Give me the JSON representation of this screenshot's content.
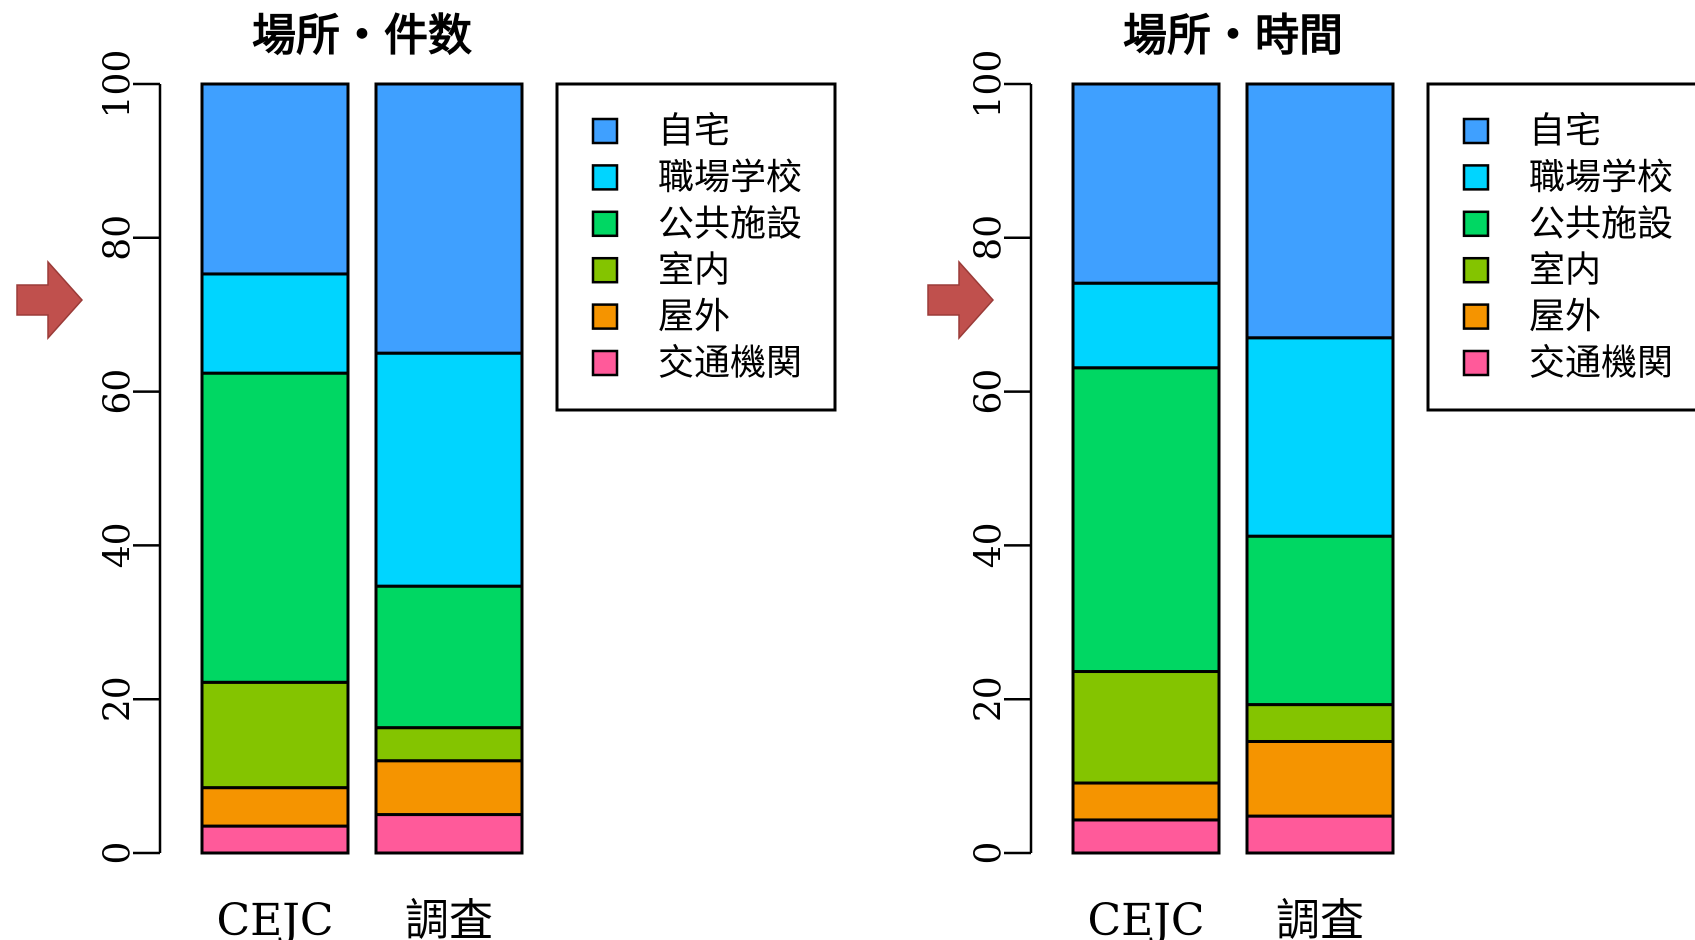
{
  "colors": {
    "自宅": "#3fa0ff",
    "職場学校": "#00d5ff",
    "公共施設": "#00d763",
    "室内": "#84c400",
    "屋外": "#f59400",
    "交通機関": "#ff5a9a",
    "arrow": "#c0504d",
    "frame": "#000000"
  },
  "chart_data": [
    {
      "type": "bar",
      "stacked": true,
      "title": "場所・件数",
      "categories": [
        "CEJC",
        "調査"
      ],
      "ylim": [
        0,
        100
      ],
      "yticks": [
        0,
        20,
        40,
        60,
        80,
        100
      ],
      "legend_placement": "top-right",
      "series": [
        {
          "name": "交通機関",
          "values": [
            3.5,
            5.0
          ]
        },
        {
          "name": "屋外",
          "values": [
            5.0,
            7.0
          ]
        },
        {
          "name": "室内",
          "values": [
            13.7,
            4.3
          ]
        },
        {
          "name": "公共施設",
          "values": [
            40.2,
            18.4
          ]
        },
        {
          "name": "職場学校",
          "values": [
            12.9,
            30.3
          ]
        },
        {
          "name": "自宅",
          "values": [
            24.7,
            35.0
          ]
        }
      ],
      "legend_order": [
        "自宅",
        "職場学校",
        "公共施設",
        "室内",
        "屋外",
        "交通機関"
      ]
    },
    {
      "type": "bar",
      "stacked": true,
      "title": "場所・時間",
      "categories": [
        "CEJC",
        "調査"
      ],
      "ylim": [
        0,
        100
      ],
      "yticks": [
        0,
        20,
        40,
        60,
        80,
        100
      ],
      "legend_placement": "top-right",
      "series": [
        {
          "name": "交通機関",
          "values": [
            4.3,
            4.8
          ]
        },
        {
          "name": "屋外",
          "values": [
            4.8,
            9.7
          ]
        },
        {
          "name": "室内",
          "values": [
            14.5,
            4.8
          ]
        },
        {
          "name": "公共施設",
          "values": [
            39.5,
            21.9
          ]
        },
        {
          "name": "職場学校",
          "values": [
            11.0,
            25.8
          ]
        },
        {
          "name": "自宅",
          "values": [
            25.9,
            33.0
          ]
        }
      ],
      "legend_order": [
        "自宅",
        "職場学校",
        "公共施設",
        "室内",
        "屋外",
        "交通機関"
      ]
    }
  ]
}
